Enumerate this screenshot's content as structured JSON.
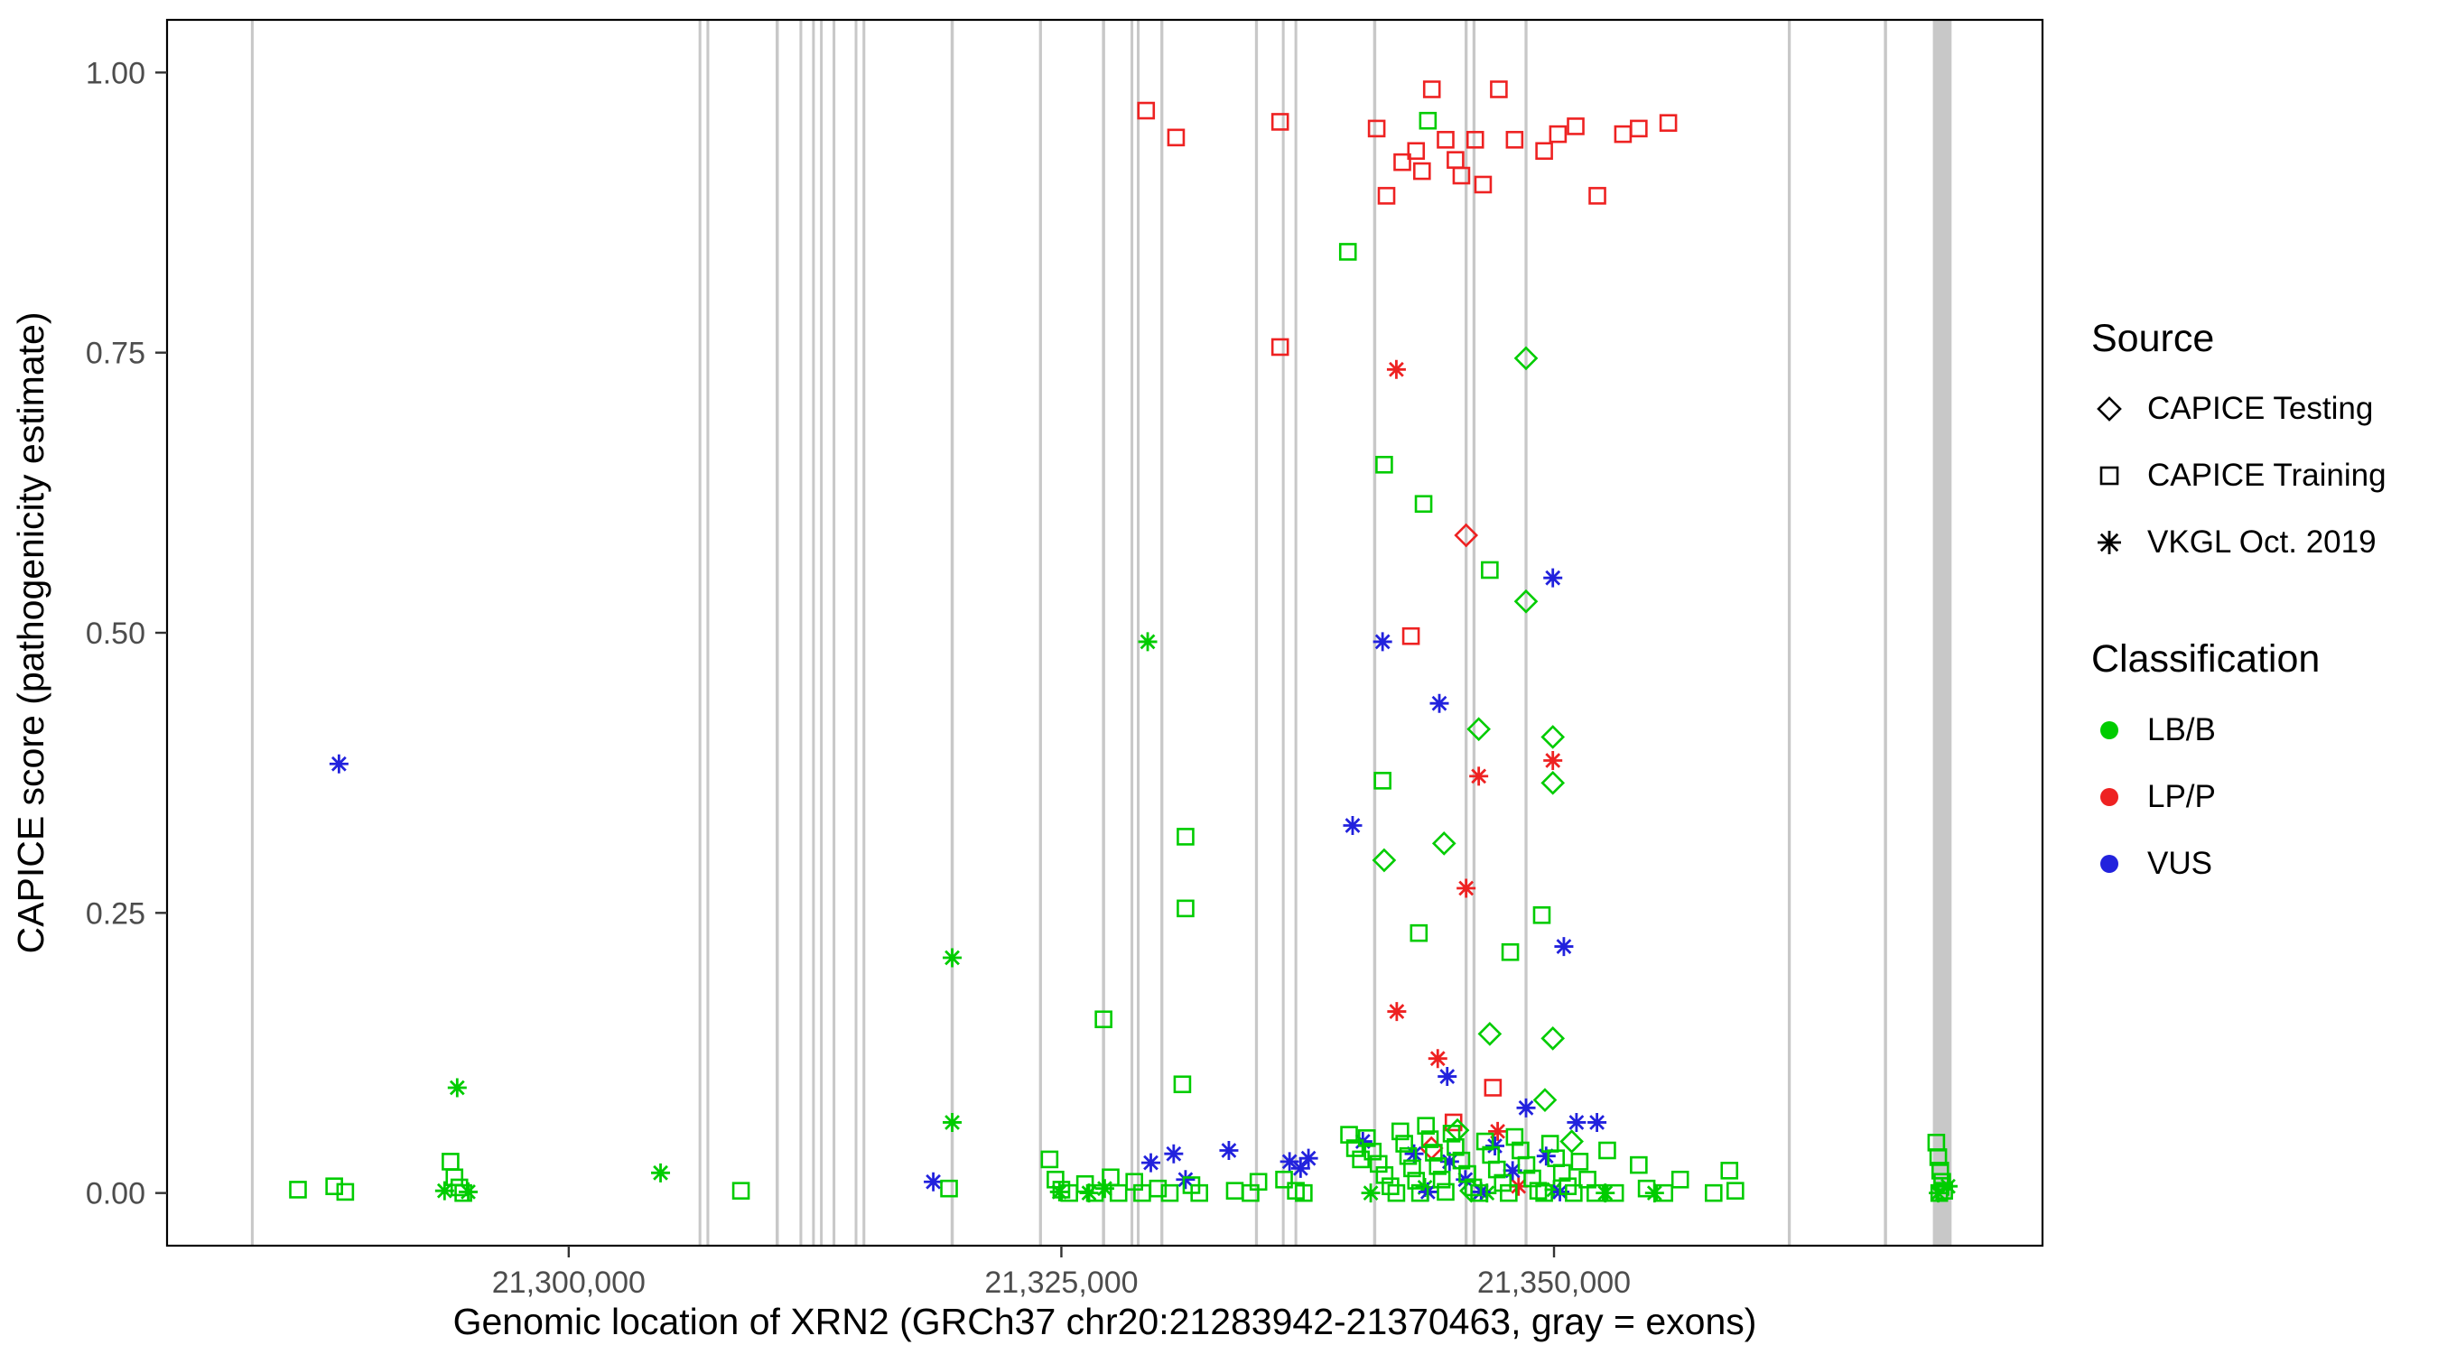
{
  "legend": {
    "source": {
      "title": "Source",
      "items": [
        {
          "label": "CAPICE Testing",
          "shape": "diamond"
        },
        {
          "label": "CAPICE Training",
          "shape": "square"
        },
        {
          "label": "VKGL Oct. 2019",
          "shape": "asterisk"
        }
      ]
    },
    "classification": {
      "title": "Classification",
      "items": [
        {
          "label": "LB/B",
          "color": "#00CC00"
        },
        {
          "label": "LP/P",
          "color": "#EE2222"
        },
        {
          "label": "VUS",
          "color": "#2222DD"
        }
      ]
    }
  },
  "chart_data": {
    "type": "scatter",
    "title": "",
    "xlabel": "Genomic location of XRN2 (GRCh37 chr20:21283942-21370463, gray = exons)",
    "ylabel": "CAPICE score (pathogenicity estimate)",
    "xlim": [
      21279616,
      21374789
    ],
    "ylim": [
      -0.047,
      1.047
    ],
    "grid": false,
    "legend_position": "right",
    "xticks": [
      {
        "value": 21300000,
        "label": "21,300,000"
      },
      {
        "value": 21325000,
        "label": "21,325,000"
      },
      {
        "value": 21350000,
        "label": "21,350,000"
      }
    ],
    "yticks": [
      {
        "value": 0.0,
        "label": "0.00"
      },
      {
        "value": 0.25,
        "label": "0.25"
      },
      {
        "value": 0.5,
        "label": "0.50"
      },
      {
        "value": 0.75,
        "label": "0.75"
      },
      {
        "value": 1.0,
        "label": "1.00"
      }
    ],
    "exon_color": "#C8C8C8",
    "exons": [
      [
        21283942,
        140
      ],
      [
        21306660,
        140
      ],
      [
        21307060,
        140
      ],
      [
        21310580,
        160
      ],
      [
        21311780,
        140
      ],
      [
        21312420,
        130
      ],
      [
        21312820,
        130
      ],
      [
        21313460,
        140
      ],
      [
        21314580,
        130
      ],
      [
        21314980,
        140
      ],
      [
        21319460,
        160
      ],
      [
        21323940,
        150
      ],
      [
        21327140,
        160
      ],
      [
        21328580,
        140
      ],
      [
        21328900,
        140
      ],
      [
        21330100,
        150
      ],
      [
        21334900,
        150
      ],
      [
        21336260,
        140
      ],
      [
        21336900,
        140
      ],
      [
        21340900,
        160
      ],
      [
        21345540,
        150
      ],
      [
        21345940,
        150
      ],
      [
        21348580,
        150
      ],
      [
        21361940,
        150
      ],
      [
        21366820,
        160
      ],
      [
        21369700,
        950
      ]
    ],
    "colors": {
      "LB": "#00CC00",
      "LP": "#EE2222",
      "VUS": "#2222DD"
    },
    "shapes": {
      "s": "CAPICE Training (square)",
      "d": "CAPICE Testing (diamond)",
      "a": "VKGL Oct. 2019 (asterisk)"
    },
    "points": [
      [
        21329300,
        0.966,
        "s",
        "LP"
      ],
      [
        21330820,
        0.942,
        "s",
        "LP"
      ],
      [
        21336100,
        0.956,
        "s",
        "LP"
      ],
      [
        21336100,
        0.755,
        "s",
        "LP"
      ],
      [
        21341000,
        0.95,
        "s",
        "LP"
      ],
      [
        21341500,
        0.89,
        "s",
        "LP"
      ],
      [
        21342300,
        0.92,
        "s",
        "LP"
      ],
      [
        21343000,
        0.93,
        "s",
        "LP"
      ],
      [
        21343300,
        0.912,
        "s",
        "LP"
      ],
      [
        21343800,
        0.985,
        "s",
        "LP"
      ],
      [
        21344500,
        0.94,
        "s",
        "LP"
      ],
      [
        21345000,
        0.922,
        "s",
        "LP"
      ],
      [
        21345300,
        0.908,
        "s",
        "LP"
      ],
      [
        21346000,
        0.94,
        "s",
        "LP"
      ],
      [
        21346400,
        0.9,
        "s",
        "LP"
      ],
      [
        21347200,
        0.985,
        "s",
        "LP"
      ],
      [
        21348000,
        0.94,
        "s",
        "LP"
      ],
      [
        21349500,
        0.93,
        "s",
        "LP"
      ],
      [
        21350200,
        0.945,
        "s",
        "LP"
      ],
      [
        21351100,
        0.952,
        "s",
        "LP"
      ],
      [
        21352200,
        0.89,
        "s",
        "LP"
      ],
      [
        21353500,
        0.945,
        "s",
        "LP"
      ],
      [
        21354300,
        0.95,
        "s",
        "LP"
      ],
      [
        21355800,
        0.955,
        "s",
        "LP"
      ],
      [
        21342740,
        0.497,
        "s",
        "LP"
      ],
      [
        21344900,
        0.063,
        "s",
        "LP"
      ],
      [
        21346900,
        0.094,
        "s",
        "LP"
      ],
      [
        21345540,
        0.587,
        "d",
        "LP"
      ],
      [
        21343780,
        0.04,
        "d",
        "LP"
      ],
      [
        21342000,
        0.735,
        "a",
        "LP"
      ],
      [
        21346180,
        0.372,
        "a",
        "LP"
      ],
      [
        21349940,
        0.386,
        "a",
        "LP"
      ],
      [
        21345540,
        0.272,
        "a",
        "LP"
      ],
      [
        21342020,
        0.162,
        "a",
        "LP"
      ],
      [
        21344100,
        0.12,
        "a",
        "LP"
      ],
      [
        21347140,
        0.055,
        "a",
        "LP"
      ],
      [
        21348200,
        0.006,
        "a",
        "LP"
      ],
      [
        21348580,
        0.745,
        "d",
        "LB"
      ],
      [
        21348580,
        0.528,
        "d",
        "LB"
      ],
      [
        21346180,
        0.414,
        "d",
        "LB"
      ],
      [
        21349940,
        0.407,
        "d",
        "LB"
      ],
      [
        21349940,
        0.366,
        "d",
        "LB"
      ],
      [
        21344420,
        0.312,
        "d",
        "LB"
      ],
      [
        21341380,
        0.297,
        "d",
        "LB"
      ],
      [
        21346740,
        0.142,
        "d",
        "LB"
      ],
      [
        21349940,
        0.138,
        "d",
        "LB"
      ],
      [
        21349540,
        0.083,
        "d",
        "LB"
      ],
      [
        21345100,
        0.056,
        "d",
        "LB"
      ],
      [
        21350900,
        0.046,
        "d",
        "LB"
      ],
      [
        21345800,
        0.002,
        "d",
        "LB"
      ],
      [
        21343600,
        0.957,
        "s",
        "LB"
      ],
      [
        21339540,
        0.84,
        "s",
        "LB"
      ],
      [
        21341380,
        0.65,
        "s",
        "LB"
      ],
      [
        21343380,
        0.615,
        "s",
        "LB"
      ],
      [
        21346740,
        0.556,
        "s",
        "LB"
      ],
      [
        21341300,
        0.368,
        "s",
        "LB"
      ],
      [
        21331300,
        0.318,
        "s",
        "LB"
      ],
      [
        21331300,
        0.254,
        "s",
        "LB"
      ],
      [
        21349380,
        0.248,
        "s",
        "LB"
      ],
      [
        21343140,
        0.232,
        "s",
        "LB"
      ],
      [
        21347780,
        0.215,
        "s",
        "LB"
      ],
      [
        21327140,
        0.155,
        "s",
        "LB"
      ],
      [
        21331140,
        0.097,
        "s",
        "LB"
      ],
      [
        21329380,
        0.492,
        "a",
        "LB"
      ],
      [
        21319460,
        0.21,
        "a",
        "LB"
      ],
      [
        21319460,
        0.063,
        "a",
        "LB"
      ],
      [
        21294340,
        0.094,
        "a",
        "LB"
      ],
      [
        21304660,
        0.018,
        "a",
        "LB"
      ],
      [
        21293700,
        0.002,
        "a",
        "LB"
      ],
      [
        21294900,
        0.001,
        "a",
        "LB"
      ],
      [
        21324900,
        0.001,
        "a",
        "LB"
      ],
      [
        21326400,
        0.0,
        "a",
        "LB"
      ],
      [
        21327200,
        0.004,
        "a",
        "LB"
      ],
      [
        21340700,
        0.0,
        "a",
        "LB"
      ],
      [
        21343450,
        0.005,
        "a",
        "LB"
      ],
      [
        21346600,
        0.0,
        "a",
        "LB"
      ],
      [
        21350000,
        0.003,
        "a",
        "LB"
      ],
      [
        21352600,
        0.0,
        "a",
        "LB"
      ],
      [
        21355100,
        0.0,
        "a",
        "LB"
      ],
      [
        21369500,
        0.0,
        "a",
        "LB"
      ],
      [
        21370000,
        0.006,
        "a",
        "LB"
      ],
      [
        21288340,
        0.383,
        "a",
        "VUS"
      ],
      [
        21349940,
        0.549,
        "a",
        "VUS"
      ],
      [
        21341300,
        0.492,
        "a",
        "VUS"
      ],
      [
        21344180,
        0.437,
        "a",
        "VUS"
      ],
      [
        21339780,
        0.328,
        "a",
        "VUS"
      ],
      [
        21350500,
        0.22,
        "a",
        "VUS"
      ],
      [
        21344580,
        0.104,
        "a",
        "VUS"
      ],
      [
        21348580,
        0.076,
        "a",
        "VUS"
      ],
      [
        21351140,
        0.063,
        "a",
        "VUS"
      ],
      [
        21352180,
        0.063,
        "a",
        "VUS"
      ],
      [
        21318500,
        0.01,
        "a",
        "VUS"
      ],
      [
        21329540,
        0.027,
        "a",
        "VUS"
      ],
      [
        21330700,
        0.035,
        "a",
        "VUS"
      ],
      [
        21331300,
        0.012,
        "a",
        "VUS"
      ],
      [
        21333500,
        0.038,
        "a",
        "VUS"
      ],
      [
        21336580,
        0.028,
        "a",
        "VUS"
      ],
      [
        21337140,
        0.022,
        "a",
        "VUS"
      ],
      [
        21337540,
        0.031,
        "a",
        "VUS"
      ],
      [
        21340300,
        0.046,
        "a",
        "VUS"
      ],
      [
        21342900,
        0.035,
        "a",
        "VUS"
      ],
      [
        21343600,
        0.001,
        "a",
        "VUS"
      ],
      [
        21344700,
        0.028,
        "a",
        "VUS"
      ],
      [
        21345500,
        0.012,
        "a",
        "VUS"
      ],
      [
        21346300,
        0.001,
        "a",
        "VUS"
      ],
      [
        21347000,
        0.042,
        "a",
        "VUS"
      ],
      [
        21347900,
        0.02,
        "a",
        "VUS"
      ],
      [
        21349600,
        0.033,
        "a",
        "VUS"
      ],
      [
        21350300,
        0.001,
        "a",
        "VUS"
      ],
      [
        21286260,
        0.003,
        "s",
        "LB"
      ],
      [
        21288100,
        0.006,
        "s",
        "LB"
      ],
      [
        21288660,
        0.001,
        "s",
        "LB"
      ],
      [
        21294000,
        0.028,
        "s",
        "LB"
      ],
      [
        21294200,
        0.014,
        "s",
        "LB"
      ],
      [
        21294450,
        0.005,
        "s",
        "LB"
      ],
      [
        21294650,
        0.0,
        "s",
        "LB"
      ],
      [
        21308740,
        0.002,
        "s",
        "LB"
      ],
      [
        21319300,
        0.004,
        "s",
        "LB"
      ],
      [
        21324400,
        0.03,
        "s",
        "LB"
      ],
      [
        21324700,
        0.012,
        "s",
        "LB"
      ],
      [
        21325000,
        0.003,
        "s",
        "LB"
      ],
      [
        21325400,
        0.0,
        "s",
        "LB"
      ],
      [
        21326200,
        0.008,
        "s",
        "LB"
      ],
      [
        21326700,
        0.0,
        "s",
        "LB"
      ],
      [
        21327500,
        0.014,
        "s",
        "LB"
      ],
      [
        21327900,
        0.0,
        "s",
        "LB"
      ],
      [
        21328700,
        0.01,
        "s",
        "LB"
      ],
      [
        21329100,
        0.0,
        "s",
        "LB"
      ],
      [
        21329900,
        0.004,
        "s",
        "LB"
      ],
      [
        21330500,
        0.0,
        "s",
        "LB"
      ],
      [
        21331600,
        0.007,
        "s",
        "LB"
      ],
      [
        21332000,
        0.0,
        "s",
        "LB"
      ],
      [
        21333800,
        0.002,
        "s",
        "LB"
      ],
      [
        21334600,
        0.0,
        "s",
        "LB"
      ],
      [
        21335000,
        0.01,
        "s",
        "LB"
      ],
      [
        21336300,
        0.012,
        "s",
        "LB"
      ],
      [
        21336900,
        0.002,
        "s",
        "LB"
      ],
      [
        21337300,
        0.0,
        "s",
        "LB"
      ],
      [
        21339600,
        0.052,
        "s",
        "LB"
      ],
      [
        21339900,
        0.04,
        "s",
        "LB"
      ],
      [
        21340200,
        0.03,
        "s",
        "LB"
      ],
      [
        21340500,
        0.049,
        "s",
        "LB"
      ],
      [
        21340800,
        0.037,
        "s",
        "LB"
      ],
      [
        21341100,
        0.026,
        "s",
        "LB"
      ],
      [
        21341400,
        0.016,
        "s",
        "LB"
      ],
      [
        21341700,
        0.006,
        "s",
        "LB"
      ],
      [
        21342000,
        0.0,
        "s",
        "LB"
      ],
      [
        21342200,
        0.055,
        "s",
        "LB"
      ],
      [
        21342400,
        0.044,
        "s",
        "LB"
      ],
      [
        21342600,
        0.033,
        "s",
        "LB"
      ],
      [
        21342800,
        0.022,
        "s",
        "LB"
      ],
      [
        21343000,
        0.011,
        "s",
        "LB"
      ],
      [
        21343200,
        0.0,
        "s",
        "LB"
      ],
      [
        21343500,
        0.06,
        "s",
        "LB"
      ],
      [
        21343700,
        0.048,
        "s",
        "LB"
      ],
      [
        21343900,
        0.036,
        "s",
        "LB"
      ],
      [
        21344100,
        0.024,
        "s",
        "LB"
      ],
      [
        21344300,
        0.012,
        "s",
        "LB"
      ],
      [
        21344500,
        0.001,
        "s",
        "LB"
      ],
      [
        21344800,
        0.053,
        "s",
        "LB"
      ],
      [
        21345000,
        0.041,
        "s",
        "LB"
      ],
      [
        21345300,
        0.029,
        "s",
        "LB"
      ],
      [
        21345600,
        0.017,
        "s",
        "LB"
      ],
      [
        21345900,
        0.005,
        "s",
        "LB"
      ],
      [
        21346200,
        0.0,
        "s",
        "LB"
      ],
      [
        21346500,
        0.046,
        "s",
        "LB"
      ],
      [
        21346800,
        0.034,
        "s",
        "LB"
      ],
      [
        21347100,
        0.021,
        "s",
        "LB"
      ],
      [
        21347400,
        0.009,
        "s",
        "LB"
      ],
      [
        21347700,
        0.0,
        "s",
        "LB"
      ],
      [
        21348000,
        0.05,
        "s",
        "LB"
      ],
      [
        21348300,
        0.038,
        "s",
        "LB"
      ],
      [
        21348600,
        0.025,
        "s",
        "LB"
      ],
      [
        21348900,
        0.013,
        "s",
        "LB"
      ],
      [
        21349200,
        0.002,
        "s",
        "LB"
      ],
      [
        21349500,
        0.0,
        "s",
        "LB"
      ],
      [
        21349800,
        0.044,
        "s",
        "LB"
      ],
      [
        21350100,
        0.031,
        "s",
        "LB"
      ],
      [
        21350400,
        0.018,
        "s",
        "LB"
      ],
      [
        21350700,
        0.006,
        "s",
        "LB"
      ],
      [
        21351000,
        0.0,
        "s",
        "LB"
      ],
      [
        21351300,
        0.028,
        "s",
        "LB"
      ],
      [
        21351700,
        0.012,
        "s",
        "LB"
      ],
      [
        21352100,
        0.0,
        "s",
        "LB"
      ],
      [
        21352700,
        0.038,
        "s",
        "LB"
      ],
      [
        21353100,
        0.0,
        "s",
        "LB"
      ],
      [
        21354300,
        0.025,
        "s",
        "LB"
      ],
      [
        21354700,
        0.004,
        "s",
        "LB"
      ],
      [
        21355600,
        0.0,
        "s",
        "LB"
      ],
      [
        21356400,
        0.012,
        "s",
        "LB"
      ],
      [
        21358100,
        0.0,
        "s",
        "LB"
      ],
      [
        21358900,
        0.02,
        "s",
        "LB"
      ],
      [
        21359200,
        0.002,
        "s",
        "LB"
      ],
      [
        21369400,
        0.045,
        "s",
        "LB"
      ],
      [
        21369500,
        0.032,
        "s",
        "LB"
      ],
      [
        21369600,
        0.02,
        "s",
        "LB"
      ],
      [
        21369700,
        0.01,
        "s",
        "LB"
      ],
      [
        21369800,
        0.002,
        "s",
        "LB"
      ],
      [
        21369550,
        0.0,
        "s",
        "LB"
      ]
    ]
  }
}
